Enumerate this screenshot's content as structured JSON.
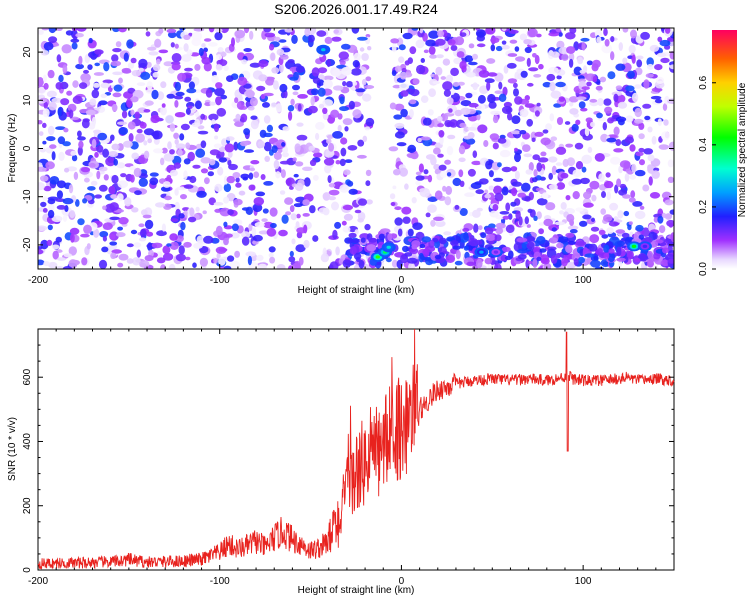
{
  "title": "S206.2026.001.17.49.R24",
  "chart_data": [
    {
      "type": "heatmap",
      "xlabel": "Height of straight line (km)",
      "ylabel": "Frequency (Hz)",
      "xlim": [
        -200,
        150
      ],
      "ylim": [
        -25,
        25
      ],
      "xticks": [
        -200,
        -100,
        0,
        100
      ],
      "yticks": [
        -20,
        -10,
        0,
        10,
        20
      ],
      "colorbar": {
        "label": "Normalized spectral amplitude",
        "range": [
          0.0,
          0.77
        ],
        "ticks": [
          "0.0",
          "0.2",
          "0.4",
          "0.6"
        ],
        "tick_values": [
          0.0,
          0.2,
          0.4,
          0.6
        ]
      },
      "notable_peaks": [
        {
          "x": -43,
          "y": 20.5,
          "value": 0.28
        },
        {
          "x": -13,
          "y": -22.5,
          "value": 0.45
        },
        {
          "x": -9,
          "y": -21.5,
          "value": 0.38
        },
        {
          "x": -7,
          "y": -20.5,
          "value": 0.3
        },
        {
          "x": 44,
          "y": -21.5,
          "value": 0.25
        },
        {
          "x": 52,
          "y": -21.5,
          "value": 0.12
        },
        {
          "x": 128,
          "y": -20.3,
          "value": 0.42
        },
        {
          "x": 134,
          "y": -20.3,
          "value": 0.15
        }
      ],
      "grid": false
    },
    {
      "type": "line",
      "xlabel": "Height of straight line (km)",
      "ylabel": "SNR (10 * v/v)",
      "xlim": [
        -200,
        150
      ],
      "ylim": [
        0,
        750
      ],
      "xticks": [
        -200,
        -100,
        0,
        100
      ],
      "yticks": [
        0,
        200,
        400,
        600
      ],
      "color": "#e8221e",
      "grid": false,
      "series": [
        {
          "x": [
            -200,
            -180,
            -160,
            -150,
            -140,
            -120,
            -110,
            -100,
            -95,
            -90,
            -85,
            -80,
            -75,
            -70,
            -65,
            -60,
            -55,
            -50,
            -45,
            -40,
            -35,
            -32,
            -30,
            -28,
            -25,
            -22,
            -20,
            -18,
            -15,
            -12,
            -10,
            -8,
            -5,
            -3,
            0,
            3,
            5,
            8,
            10,
            12,
            15,
            18,
            20,
            25,
            30,
            35,
            40,
            50,
            60,
            70,
            80,
            90,
            92,
            94,
            100,
            110,
            120,
            125,
            130,
            140,
            150
          ],
          "y": [
            20,
            22,
            25,
            32,
            24,
            28,
            33,
            55,
            80,
            65,
            75,
            90,
            70,
            100,
            120,
            95,
            80,
            60,
            70,
            90,
            150,
            200,
            240,
            260,
            300,
            330,
            320,
            360,
            380,
            360,
            390,
            410,
            430,
            440,
            450,
            460,
            480,
            470,
            500,
            510,
            530,
            550,
            560,
            570,
            580,
            585,
            590,
            595,
            590,
            595,
            590,
            600,
            610,
            595,
            590,
            590,
            595,
            600,
            590,
            595,
            590
          ]
        }
      ],
      "annotations": [
        {
          "x": 90,
          "y": 740,
          "text": ""
        }
      ]
    }
  ]
}
